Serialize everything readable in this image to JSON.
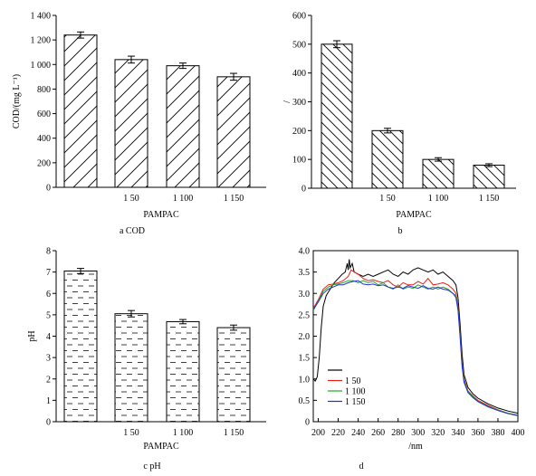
{
  "chart_data": [
    {
      "id": "a",
      "type": "bar",
      "caption": "a COD",
      "ylabel": "COD/(mg   L⁻¹)",
      "xlabel": "PAMPAC",
      "categories": [
        "",
        "1  50",
        "1  100",
        "1  150"
      ],
      "values": [
        1240,
        1040,
        990,
        900
      ],
      "errors": [
        25,
        28,
        22,
        28
      ],
      "ylim": [
        0,
        1400
      ],
      "yticks": [
        0,
        200,
        400,
        600,
        800,
        1000,
        1200,
        1400
      ],
      "ytick_labels": [
        "0",
        "200",
        "400",
        "600",
        "800",
        "1 000",
        "1 200",
        "1 400"
      ],
      "pattern": "diagonal",
      "grid": false
    },
    {
      "id": "b",
      "type": "bar",
      "caption": "b",
      "ylabel": "/",
      "xlabel": "PAMPAC",
      "categories": [
        "",
        "1  50",
        "1  100",
        "1  150"
      ],
      "values": [
        500,
        200,
        100,
        80
      ],
      "errors": [
        12,
        8,
        6,
        5
      ],
      "ylim": [
        0,
        600
      ],
      "yticks": [
        0,
        100,
        200,
        300,
        400,
        500,
        600
      ],
      "ytick_labels": [
        "0",
        "100",
        "200",
        "300",
        "400",
        "500",
        "600"
      ],
      "pattern": "diagonal",
      "grid": false
    },
    {
      "id": "c",
      "type": "bar",
      "caption": "c pH",
      "ylabel": "pH",
      "xlabel": "PAMPAC",
      "categories": [
        "",
        "1  50",
        "1  100",
        "1  150"
      ],
      "values": [
        7.05,
        5.05,
        4.68,
        4.4
      ],
      "errors": [
        0.12,
        0.15,
        0.1,
        0.12
      ],
      "ylim": [
        0,
        8
      ],
      "yticks": [
        0,
        1,
        2,
        3,
        4,
        5,
        6,
        7,
        8
      ],
      "ytick_labels": [
        "0",
        "1",
        "2",
        "3",
        "4",
        "5",
        "6",
        "7",
        "8"
      ],
      "pattern": "dashes",
      "grid": false
    },
    {
      "id": "d",
      "type": "line",
      "caption": "d",
      "xlabel": "/nm",
      "ylabel": "",
      "xlim": [
        195,
        400
      ],
      "ylim": [
        0,
        4.0
      ],
      "xticks": [
        200,
        220,
        240,
        260,
        280,
        300,
        320,
        340,
        360,
        380,
        400
      ],
      "yticks": [
        0,
        0.5,
        1.0,
        1.5,
        2.0,
        2.5,
        3.0,
        3.5,
        4.0
      ],
      "ytick_labels": [
        "0",
        "0.5",
        "1.0",
        "1.5",
        "2.0",
        "2.5",
        "3.0",
        "3.5",
        "4.0"
      ],
      "legend_position": "lower-left",
      "grid": false,
      "series": [
        {
          "name": "",
          "color": "#000000",
          "points": [
            [
              195,
              1.0
            ],
            [
              197,
              0.95
            ],
            [
              199,
              1.05
            ],
            [
              201,
              1.5
            ],
            [
              203,
              2.2
            ],
            [
              205,
              2.7
            ],
            [
              208,
              2.95
            ],
            [
              212,
              3.1
            ],
            [
              216,
              3.25
            ],
            [
              220,
              3.35
            ],
            [
              224,
              3.45
            ],
            [
              227,
              3.5
            ],
            [
              229,
              3.7
            ],
            [
              230,
              3.55
            ],
            [
              231,
              3.8
            ],
            [
              232,
              3.6
            ],
            [
              234,
              3.7
            ],
            [
              236,
              3.5
            ],
            [
              240,
              3.45
            ],
            [
              245,
              3.4
            ],
            [
              250,
              3.45
            ],
            [
              255,
              3.4
            ],
            [
              260,
              3.45
            ],
            [
              265,
              3.5
            ],
            [
              270,
              3.55
            ],
            [
              275,
              3.45
            ],
            [
              280,
              3.4
            ],
            [
              285,
              3.5
            ],
            [
              290,
              3.45
            ],
            [
              295,
              3.55
            ],
            [
              300,
              3.6
            ],
            [
              305,
              3.55
            ],
            [
              310,
              3.5
            ],
            [
              315,
              3.55
            ],
            [
              320,
              3.45
            ],
            [
              325,
              3.5
            ],
            [
              330,
              3.4
            ],
            [
              335,
              3.3
            ],
            [
              338,
              3.2
            ],
            [
              340,
              2.9
            ],
            [
              342,
              2.3
            ],
            [
              344,
              1.6
            ],
            [
              346,
              1.1
            ],
            [
              350,
              0.8
            ],
            [
              355,
              0.65
            ],
            [
              360,
              0.55
            ],
            [
              370,
              0.42
            ],
            [
              380,
              0.32
            ],
            [
              390,
              0.25
            ],
            [
              400,
              0.2
            ]
          ]
        },
        {
          "name": "1  50",
          "color": "#e8201a",
          "points": [
            [
              195,
              2.65
            ],
            [
              200,
              2.85
            ],
            [
              205,
              3.1
            ],
            [
              210,
              3.2
            ],
            [
              215,
              3.22
            ],
            [
              220,
              3.25
            ],
            [
              225,
              3.3
            ],
            [
              230,
              3.4
            ],
            [
              233,
              3.55
            ],
            [
              236,
              3.5
            ],
            [
              240,
              3.45
            ],
            [
              245,
              3.35
            ],
            [
              250,
              3.3
            ],
            [
              255,
              3.32
            ],
            [
              260,
              3.28
            ],
            [
              265,
              3.25
            ],
            [
              270,
              3.3
            ],
            [
              275,
              3.2
            ],
            [
              280,
              3.15
            ],
            [
              285,
              3.25
            ],
            [
              290,
              3.2
            ],
            [
              295,
              3.2
            ],
            [
              300,
              3.28
            ],
            [
              305,
              3.22
            ],
            [
              310,
              3.35
            ],
            [
              315,
              3.2
            ],
            [
              320,
              3.22
            ],
            [
              325,
              3.25
            ],
            [
              330,
              3.2
            ],
            [
              335,
              3.1
            ],
            [
              338,
              3.0
            ],
            [
              340,
              2.7
            ],
            [
              342,
              2.1
            ],
            [
              344,
              1.4
            ],
            [
              346,
              1.0
            ],
            [
              350,
              0.72
            ],
            [
              355,
              0.6
            ],
            [
              360,
              0.5
            ],
            [
              370,
              0.38
            ],
            [
              380,
              0.28
            ],
            [
              390,
              0.2
            ],
            [
              400,
              0.15
            ]
          ]
        },
        {
          "name": "1  100",
          "color": "#1fa81f",
          "points": [
            [
              195,
              2.6
            ],
            [
              200,
              2.82
            ],
            [
              205,
              3.05
            ],
            [
              210,
              3.15
            ],
            [
              215,
              3.2
            ],
            [
              220,
              3.22
            ],
            [
              225,
              3.25
            ],
            [
              230,
              3.3
            ],
            [
              235,
              3.3
            ],
            [
              240,
              3.25
            ],
            [
              245,
              3.3
            ],
            [
              250,
              3.25
            ],
            [
              255,
              3.28
            ],
            [
              260,
              3.2
            ],
            [
              265,
              3.25
            ],
            [
              270,
              3.15
            ],
            [
              275,
              3.1
            ],
            [
              280,
              3.2
            ],
            [
              285,
              3.1
            ],
            [
              290,
              3.15
            ],
            [
              295,
              3.12
            ],
            [
              300,
              3.2
            ],
            [
              305,
              3.15
            ],
            [
              310,
              3.1
            ],
            [
              315,
              3.15
            ],
            [
              320,
              3.1
            ],
            [
              325,
              3.15
            ],
            [
              330,
              3.1
            ],
            [
              335,
              3.0
            ],
            [
              338,
              2.95
            ],
            [
              340,
              2.65
            ],
            [
              342,
              2.05
            ],
            [
              344,
              1.35
            ],
            [
              346,
              0.95
            ],
            [
              350,
              0.7
            ],
            [
              355,
              0.58
            ],
            [
              360,
              0.48
            ],
            [
              370,
              0.36
            ],
            [
              380,
              0.27
            ],
            [
              390,
              0.2
            ],
            [
              400,
              0.15
            ]
          ]
        },
        {
          "name": "1  150",
          "color": "#2030d8",
          "points": [
            [
              195,
              2.62
            ],
            [
              200,
              2.8
            ],
            [
              205,
              3.0
            ],
            [
              210,
              3.1
            ],
            [
              215,
              3.15
            ],
            [
              220,
              3.2
            ],
            [
              225,
              3.2
            ],
            [
              230,
              3.25
            ],
            [
              235,
              3.28
            ],
            [
              240,
              3.3
            ],
            [
              245,
              3.22
            ],
            [
              250,
              3.2
            ],
            [
              255,
              3.22
            ],
            [
              260,
              3.18
            ],
            [
              265,
              3.2
            ],
            [
              270,
              3.15
            ],
            [
              275,
              3.12
            ],
            [
              280,
              3.15
            ],
            [
              285,
              3.12
            ],
            [
              290,
              3.18
            ],
            [
              295,
              3.15
            ],
            [
              300,
              3.12
            ],
            [
              305,
              3.18
            ],
            [
              310,
              3.12
            ],
            [
              315,
              3.1
            ],
            [
              320,
              3.15
            ],
            [
              325,
              3.1
            ],
            [
              330,
              3.08
            ],
            [
              335,
              3.0
            ],
            [
              338,
              2.9
            ],
            [
              340,
              2.6
            ],
            [
              342,
              2.0
            ],
            [
              344,
              1.3
            ],
            [
              346,
              0.92
            ],
            [
              350,
              0.68
            ],
            [
              355,
              0.56
            ],
            [
              360,
              0.47
            ],
            [
              370,
              0.35
            ],
            [
              380,
              0.26
            ],
            [
              390,
              0.19
            ],
            [
              400,
              0.14
            ]
          ]
        }
      ]
    }
  ]
}
